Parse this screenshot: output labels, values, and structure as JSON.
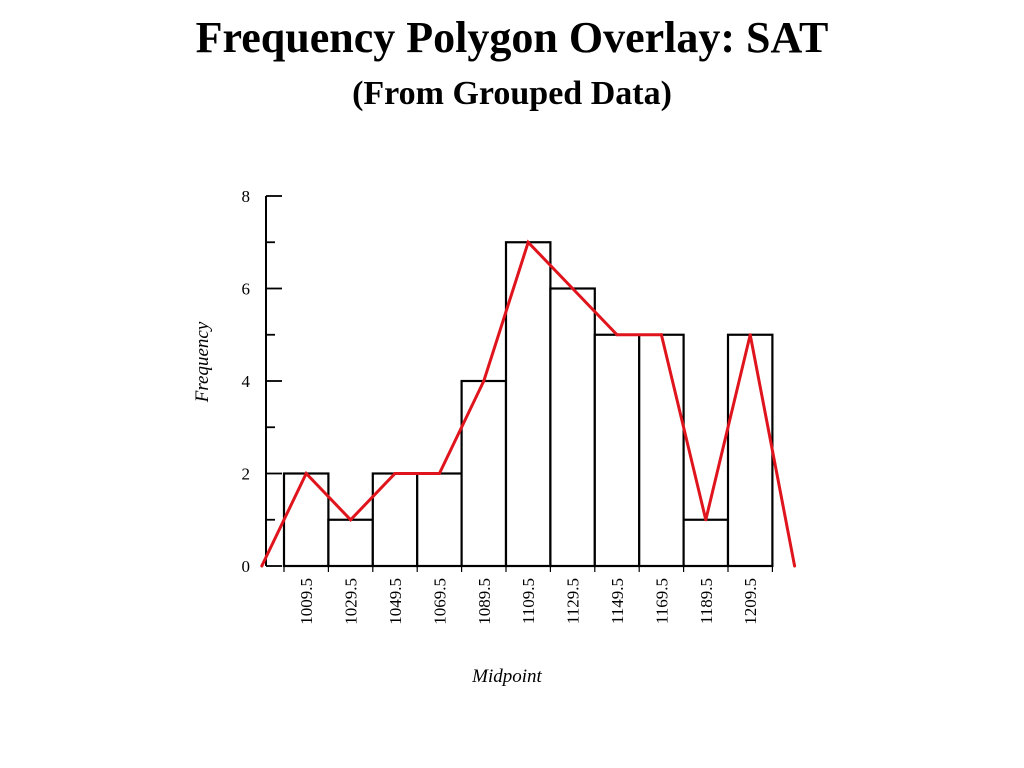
{
  "slide": {
    "title": "Frequency Polygon Overlay: SAT",
    "subtitle": "(From Grouped Data)"
  },
  "chart_data": {
    "type": "bar",
    "overlay": "line",
    "title": "Frequency Polygon Overlay: SAT",
    "subtitle": "(From Grouped Data)",
    "xlabel": "Midpoint",
    "ylabel": "Frequency",
    "categories": [
      "1009.5",
      "1029.5",
      "1049.5",
      "1069.5",
      "1089.5",
      "1109.5",
      "1129.5",
      "1149.5",
      "1169.5",
      "1189.5",
      "1209.5"
    ],
    "values": [
      2,
      1,
      2,
      2,
      4,
      7,
      6,
      5,
      5,
      1,
      5
    ],
    "ylim": [
      0,
      8
    ],
    "yticks": [
      0,
      2,
      4,
      6,
      8
    ],
    "polygon": {
      "color": "#e0141c",
      "x": [
        989.5,
        1009.5,
        1029.5,
        1049.5,
        1069.5,
        1089.5,
        1109.5,
        1129.5,
        1149.5,
        1169.5,
        1189.5,
        1209.5,
        1229.5
      ],
      "y": [
        0,
        2,
        1,
        2,
        2,
        4,
        7,
        6,
        5,
        5,
        1,
        5,
        0
      ]
    },
    "bar_color": "#ffffff",
    "edge_color": "#000000",
    "grid": false,
    "legend": "none"
  }
}
